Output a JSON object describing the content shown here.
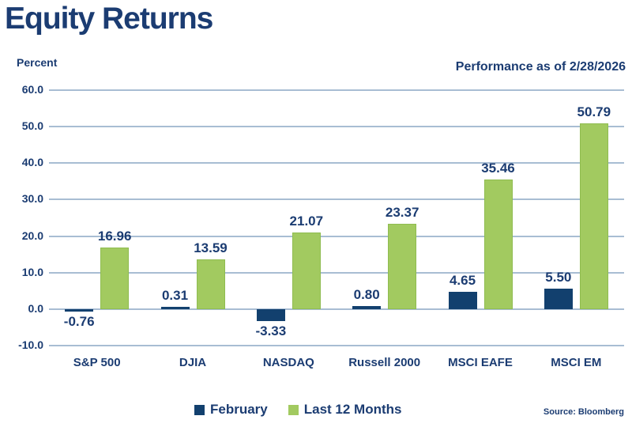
{
  "title": "Equity Returns",
  "ylabel": "Percent",
  "annotation": "Performance as of 2/28/2026",
  "source": "Source: Bloomberg",
  "colors": {
    "text_navy": "#1b3c72",
    "bar_february": "#12406e",
    "bar_last_12_months": "#a2ca60",
    "gridline": "#a8bdd3"
  },
  "legend": [
    {
      "label": "February",
      "color": "#12406e"
    },
    {
      "label": "Last 12 Months",
      "color": "#a2ca60"
    }
  ],
  "chart_data": {
    "type": "bar",
    "title": "Equity Returns",
    "xlabel": "",
    "ylabel": "Percent",
    "annotation": "Performance as of 2/28/2026",
    "source": "Source: Bloomberg",
    "categories": [
      "S&P 500",
      "DJIA",
      "NASDAQ",
      "Russell 2000",
      "MSCI EAFE",
      "MSCI EM"
    ],
    "series": [
      {
        "name": "February",
        "values": [
          -0.76,
          0.31,
          -3.33,
          0.8,
          4.65,
          5.5
        ]
      },
      {
        "name": "Last 12 Months",
        "values": [
          16.96,
          13.59,
          21.07,
          23.37,
          35.46,
          50.79
        ]
      }
    ],
    "ylim": [
      -10,
      60
    ],
    "ytick_step": 10,
    "grid": true,
    "legend_position": "bottom"
  }
}
